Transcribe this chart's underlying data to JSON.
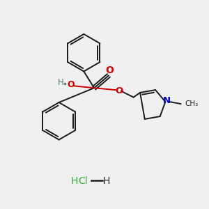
{
  "bg_color": "#f0f0f0",
  "bond_color": "#1a1a1a",
  "oxygen_color": "#cc0000",
  "nitrogen_color": "#0000cc",
  "hydrogen_color": "#557777",
  "green_color": "#33aa33",
  "figsize": [
    3.0,
    3.0
  ],
  "dpi": 100,
  "xlim": [
    0,
    10
  ],
  "ylim": [
    0,
    10
  ]
}
